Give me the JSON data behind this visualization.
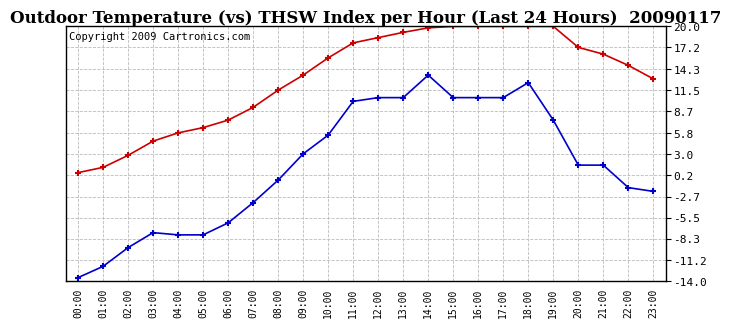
{
  "title": "Outdoor Temperature (vs) THSW Index per Hour (Last 24 Hours)  20090117",
  "copyright": "Copyright 2009 Cartronics.com",
  "hours": [
    "00:00",
    "01:00",
    "02:00",
    "03:00",
    "04:00",
    "05:00",
    "06:00",
    "07:00",
    "08:00",
    "09:00",
    "10:00",
    "11:00",
    "12:00",
    "13:00",
    "14:00",
    "15:00",
    "16:00",
    "17:00",
    "18:00",
    "19:00",
    "20:00",
    "21:00",
    "22:00",
    "23:00"
  ],
  "temp_red": [
    0.5,
    1.2,
    2.8,
    4.7,
    5.8,
    6.5,
    7.5,
    9.2,
    11.5,
    13.5,
    15.8,
    17.8,
    18.5,
    19.2,
    19.8,
    20.0,
    20.0,
    20.0,
    20.0,
    20.0,
    17.2,
    16.3,
    14.8,
    13.0
  ],
  "thsw_blue": [
    -13.5,
    -12.0,
    -9.5,
    -7.5,
    -7.8,
    -7.8,
    -6.2,
    -3.5,
    -0.5,
    3.0,
    5.5,
    10.0,
    10.5,
    10.5,
    13.5,
    10.5,
    10.5,
    10.5,
    12.5,
    7.5,
    1.5,
    1.5,
    -1.5,
    -2.0
  ],
  "ylim_min": -14.0,
  "ylim_max": 20.0,
  "yticks": [
    20.0,
    17.2,
    14.3,
    11.5,
    8.7,
    5.8,
    3.0,
    0.2,
    -2.7,
    -5.5,
    -8.3,
    -11.2,
    -14.0
  ],
  "bg_color": "#ffffff",
  "plot_bg": "#ffffff",
  "grid_color": "#bbbbbb",
  "red_color": "#cc0000",
  "blue_color": "#0000cc",
  "title_fontsize": 12,
  "copyright_fontsize": 7.5
}
